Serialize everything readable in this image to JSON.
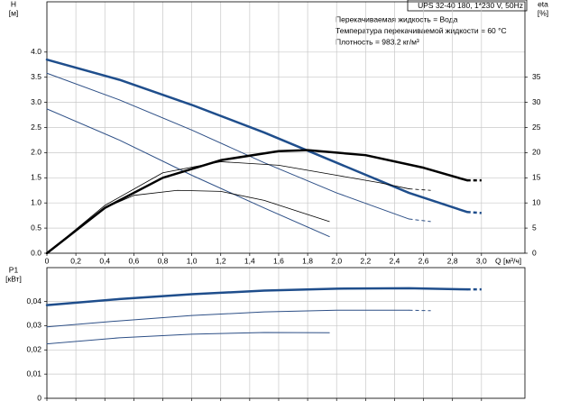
{
  "header": {
    "model": "UPS 32-40 180, 1*230 V, 50Hz",
    "info": [
      "Перекачиваемая жидкость = Вода",
      "Температура перекачиваемой жидкости = 60 °C",
      "Плотность = 983.2 кг/м³"
    ]
  },
  "chart_data": [
    {
      "type": "line",
      "y_label": "H",
      "y_unit": "[м]",
      "y2_label": "eta",
      "y2_unit": "[%]",
      "x_label": "Q [м³/ч]",
      "xlim": [
        0,
        3.3
      ],
      "ylim": [
        0,
        5
      ],
      "y2lim": [
        0,
        50
      ],
      "grid": true,
      "xticks": [
        0,
        {
          "value": 0.2,
          "label": "0,2"
        },
        {
          "value": 0.4,
          "label": "0,4"
        },
        {
          "value": 0.6,
          "label": "0,6"
        },
        {
          "value": 0.8,
          "label": "0,8"
        },
        {
          "value": 1.0,
          "label": "1,0"
        },
        {
          "value": 1.2,
          "label": "1,2"
        },
        {
          "value": 1.4,
          "label": "1,4"
        },
        {
          "value": 1.6,
          "label": "1,6"
        },
        {
          "value": 1.8,
          "label": "1,8"
        },
        {
          "value": 2.0,
          "label": "2,0"
        },
        {
          "value": 2.2,
          "label": "2,2"
        },
        {
          "value": 2.4,
          "label": "2,4"
        },
        {
          "value": 2.6,
          "label": "2,6"
        },
        {
          "value": 2.8,
          "label": "2,8"
        },
        {
          "value": 3.0,
          "label": "3,0"
        }
      ],
      "yticks": [
        {
          "value": 0,
          "label": "0.0"
        },
        0.5,
        {
          "value": 1,
          "label": "1.0"
        },
        1.5,
        {
          "value": 2,
          "label": "2.0"
        },
        2.5,
        {
          "value": 3,
          "label": "3.0"
        },
        3.5,
        {
          "value": 4,
          "label": "4.0"
        }
      ],
      "y2ticks": [
        0,
        5,
        10,
        15,
        20,
        25,
        30,
        35
      ],
      "series": [
        {
          "axis": "y",
          "color": "#1f4e8c",
          "line_width": 2.5,
          "dashed_tail": true,
          "x": [
            0,
            0.5,
            1.0,
            1.5,
            2.0,
            2.5,
            2.9,
            3.0
          ],
          "values": [
            3.85,
            3.45,
            2.95,
            2.4,
            1.8,
            1.2,
            0.82,
            0.8
          ]
        },
        {
          "axis": "y",
          "color": "#2d4f86",
          "line_width": 1,
          "dashed_tail": true,
          "x": [
            0,
            0.5,
            1.0,
            1.5,
            2.0,
            2.5,
            2.65
          ],
          "values": [
            3.58,
            3.05,
            2.45,
            1.8,
            1.2,
            0.68,
            0.63
          ]
        },
        {
          "axis": "y",
          "color": "#2d4f86",
          "line_width": 1,
          "dashed_tail": false,
          "x": [
            0,
            0.5,
            1.0,
            1.5,
            1.95
          ],
          "values": [
            2.87,
            2.25,
            1.55,
            0.9,
            0.33
          ]
        },
        {
          "axis": "y2",
          "color": "#000000",
          "line_width": 2.5,
          "dashed_tail": true,
          "x": [
            0,
            0.4,
            0.8,
            1.2,
            1.6,
            1.8,
            2.2,
            2.6,
            2.9,
            3.0
          ],
          "values": [
            0,
            9,
            15,
            18.5,
            20.3,
            20.5,
            19.5,
            17,
            14.5,
            14.5
          ]
        },
        {
          "axis": "y2",
          "color": "#000000",
          "line_width": 0.8,
          "dashed_tail": true,
          "x": [
            0,
            0.4,
            0.8,
            1.2,
            1.6,
            2.0,
            2.3,
            2.5,
            2.65
          ],
          "values": [
            0,
            9.5,
            16,
            18.2,
            17.5,
            15.5,
            14,
            12.8,
            12.5
          ]
        },
        {
          "axis": "y2",
          "color": "#000000",
          "line_width": 0.8,
          "dashed_tail": false,
          "x": [
            0,
            0.4,
            0.6,
            0.9,
            1.2,
            1.5,
            1.95
          ],
          "values": [
            0,
            9,
            11.5,
            12.5,
            12.3,
            10.5,
            6.3
          ]
        }
      ]
    },
    {
      "type": "line",
      "y_label": "P1",
      "y_unit": "[кВт]",
      "xlim": [
        0,
        3.3
      ],
      "ylim": [
        0,
        0.054
      ],
      "grid": true,
      "xticks": [
        0,
        0.2,
        0.4,
        0.6,
        0.8,
        1.0,
        1.2,
        1.4,
        1.6,
        1.8,
        2.0,
        2.2,
        2.4,
        2.6,
        2.8,
        3.0
      ],
      "yticks": [
        0,
        {
          "value": 0.01,
          "label": "0,01"
        },
        {
          "value": 0.02,
          "label": "0,02"
        },
        {
          "value": 0.03,
          "label": "0,03"
        },
        {
          "value": 0.04,
          "label": "0,04"
        }
      ],
      "series": [
        {
          "axis": "y",
          "color": "#1f4e8c",
          "line_width": 2.5,
          "dashed_tail": true,
          "x": [
            0,
            0.5,
            1.0,
            1.5,
            2.0,
            2.5,
            2.9,
            3.0
          ],
          "values": [
            0.0385,
            0.041,
            0.043,
            0.0445,
            0.0453,
            0.0455,
            0.045,
            0.045
          ]
        },
        {
          "axis": "y",
          "color": "#2d4f86",
          "line_width": 1,
          "dashed_tail": true,
          "x": [
            0,
            0.5,
            1.0,
            1.5,
            2.0,
            2.5,
            2.65
          ],
          "values": [
            0.0295,
            0.032,
            0.0342,
            0.0357,
            0.0364,
            0.0364,
            0.0362
          ]
        },
        {
          "axis": "y",
          "color": "#2d4f86",
          "line_width": 1,
          "dashed_tail": false,
          "x": [
            0,
            0.5,
            1.0,
            1.5,
            1.95
          ],
          "values": [
            0.0225,
            0.025,
            0.0265,
            0.0272,
            0.0271
          ]
        }
      ]
    }
  ]
}
